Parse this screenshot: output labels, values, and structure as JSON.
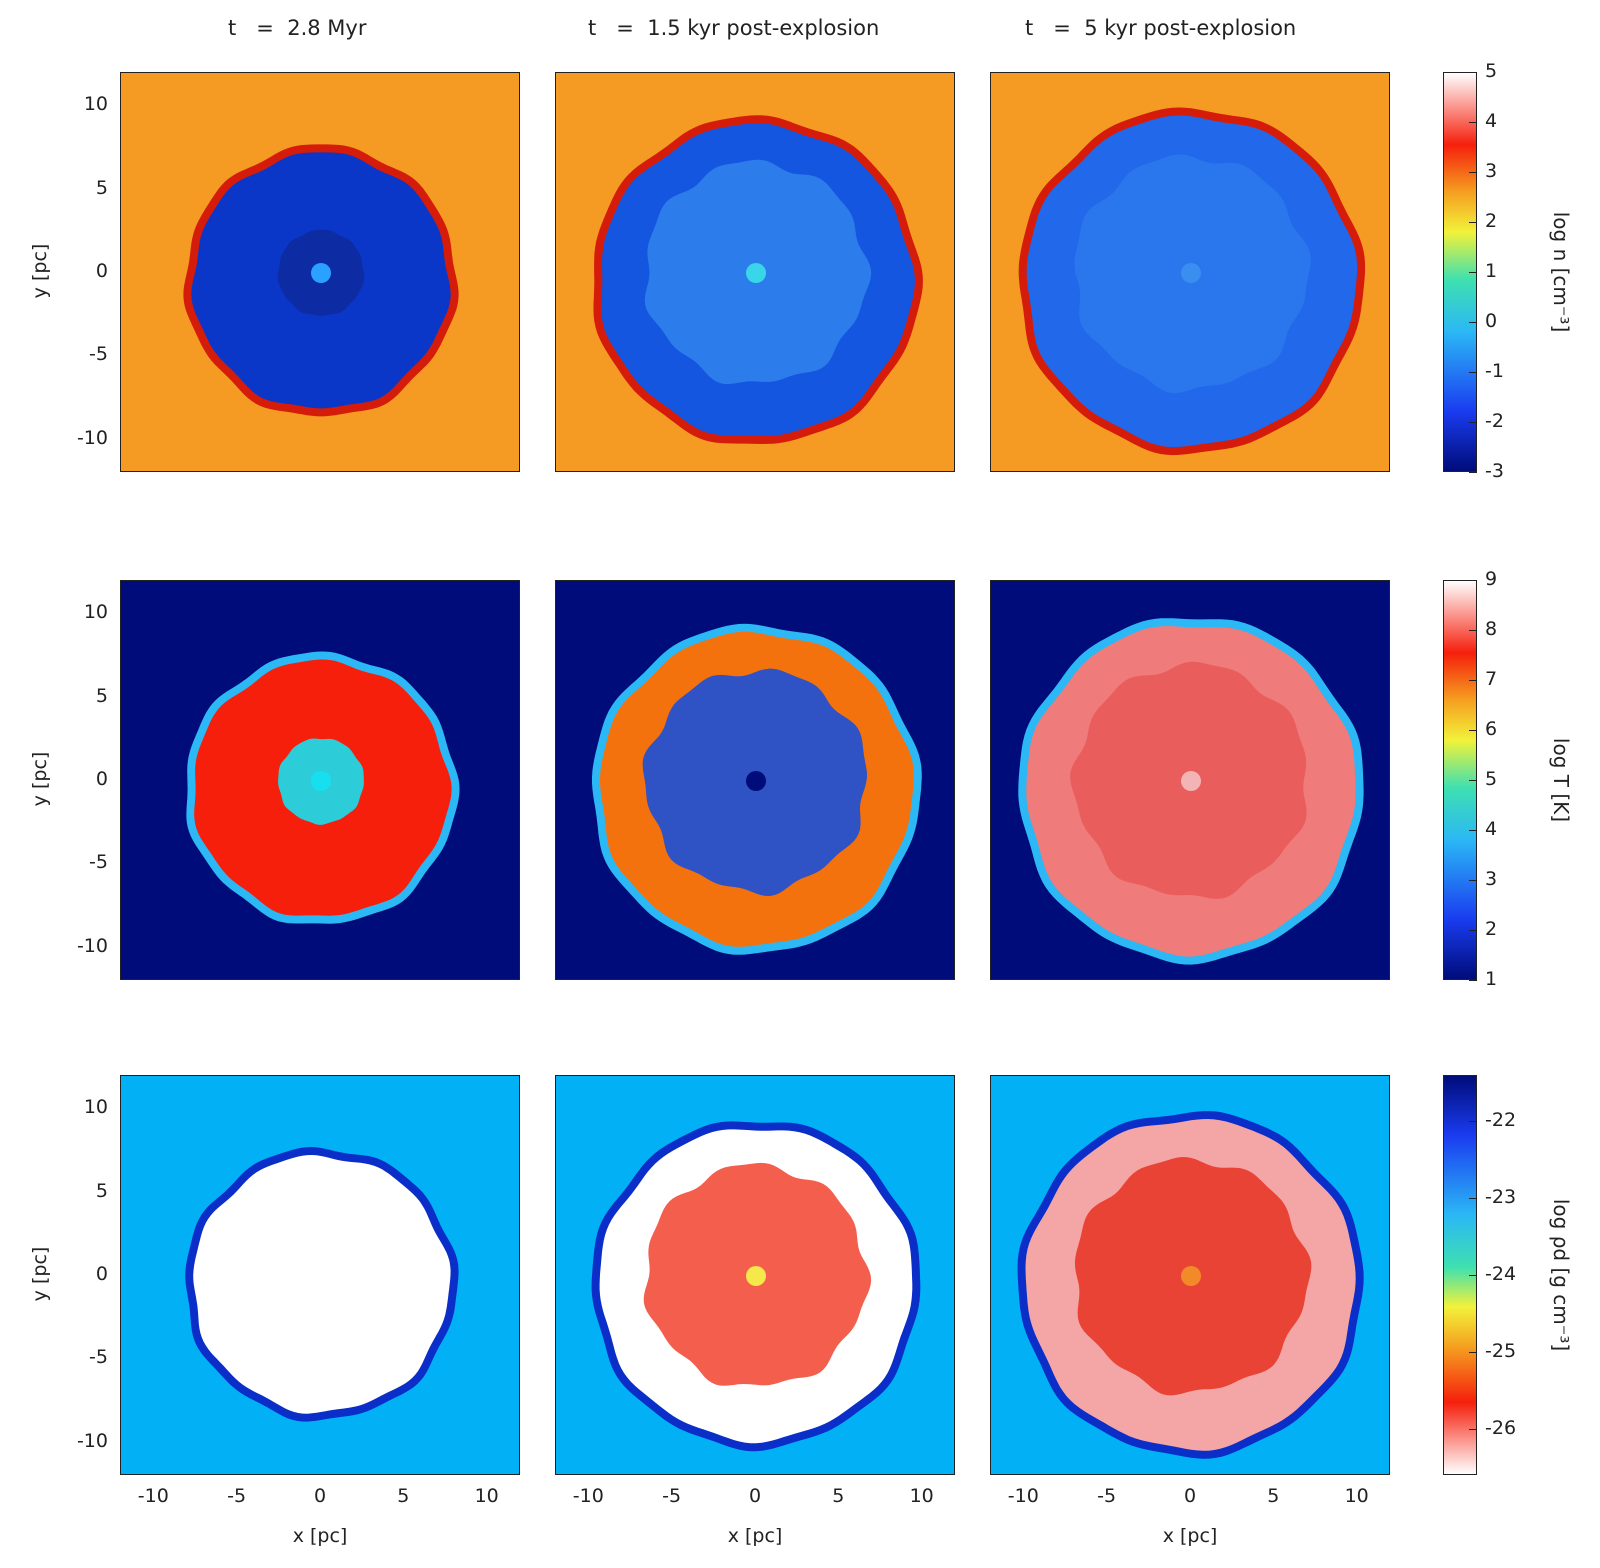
{
  "columns": [
    "t   =  2.8 Myr",
    "t   =  1.5 kyr post-explosion",
    "t   =  5 kyr post-explosion"
  ],
  "xlabel": "x [pc]",
  "ylabel": "y [pc]",
  "ticks": [
    "-10",
    "-5",
    "0",
    "5",
    "10"
  ],
  "rows": [
    {
      "quantity": "log n [cm⁻³]",
      "cbar_ticks": [
        "5",
        "4",
        "3",
        "2",
        "1",
        "0",
        "-1",
        "-2",
        "-3"
      ],
      "background": "#f59a23",
      "panels": [
        {
          "rim": "#d51c0a",
          "fill": "#0a37c8",
          "core": "#0d2a9f",
          "center": "#2aa0ff"
        },
        {
          "rim": "#d51c0a",
          "fill": "#1456e0",
          "core": "#2f82ec",
          "center": "#38d6e8"
        },
        {
          "rim": "#d51c0a",
          "fill": "#2268ea",
          "core": "#2b78ec",
          "center": "#3a8ef0"
        }
      ]
    },
    {
      "quantity": "log T [K]",
      "cbar_ticks": [
        "9",
        "8",
        "7",
        "6",
        "5",
        "4",
        "3",
        "2",
        "1"
      ],
      "background": "#000c7a",
      "panels": [
        {
          "rim": "#2bb8f5",
          "fill": "#f51f0c",
          "core": "#16e0f0",
          "center": "#16e0f0"
        },
        {
          "rim": "#2bb8f5",
          "fill": "#f4720e",
          "core": "#1a4fd8",
          "center": "#000c7a"
        },
        {
          "rim": "#2bb8f5",
          "fill": "#ef7b7b",
          "core": "#e95a5a",
          "center": "#f2b4b4"
        }
      ]
    },
    {
      "quantity": "log ρd [g cm⁻³]",
      "cbar_ticks": [
        "-22",
        "-23",
        "-24",
        "-25",
        "-26"
      ],
      "background": "#02b0f5",
      "panels": [
        {
          "rim": "#0b2ec8",
          "fill": "#ffffff",
          "core": "#ffffff",
          "center": "#ffffff"
        },
        {
          "rim": "#0b2ec8",
          "fill": "#ffffff",
          "core": "#f24d3a",
          "center": "#f5e84a"
        },
        {
          "rim": "#0b2ec8",
          "fill": "#f4a6a6",
          "core": "#e8392a",
          "center": "#f28a2a"
        }
      ]
    }
  ],
  "chart_data": {
    "type": "heatmap",
    "xlabel": "x [pc]",
    "ylabel": "y [pc]",
    "xlim": [
      -12,
      12
    ],
    "ylim": [
      -12,
      12
    ],
    "x_ticks": [
      -10,
      -5,
      0,
      5,
      10
    ],
    "y_ticks": [
      -10,
      -5,
      0,
      5,
      10
    ],
    "columns": [
      "t   =  2.8 Myr",
      "t   =  1.5 kyr post-explosion",
      "t   =  5 kyr post-explosion"
    ],
    "rows": [
      {
        "colorbar_label": "log n [cm⁻³]",
        "colorbar_range": [
          -3,
          5
        ]
      },
      {
        "colorbar_label": "log T [K]",
        "colorbar_range": [
          1,
          9
        ]
      },
      {
        "colorbar_label": "log ρd [g cm⁻³]",
        "colorbar_range": [
          -26.5,
          -21.5
        ]
      }
    ],
    "shell_radius_pc": [
      7.8,
      9.5,
      10.0
    ]
  }
}
